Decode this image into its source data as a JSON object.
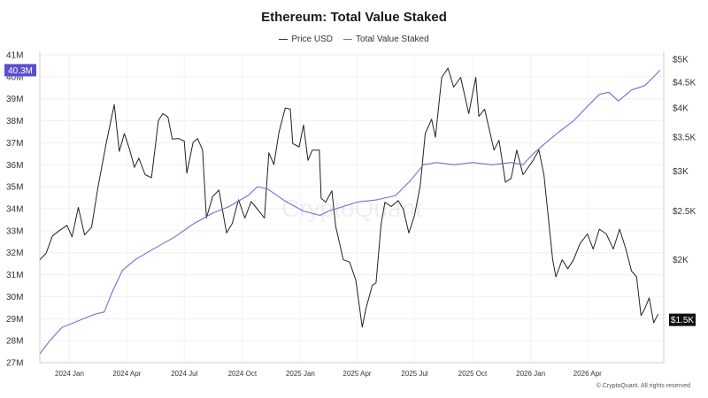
{
  "chart_data": {
    "type": "line",
    "title": "Ethereum: Total Value Staked",
    "watermark": "CryptoQuant",
    "footer": "© CryptoQuant. All rights reserved",
    "legend_placement": "top-center",
    "grid": true,
    "x_ticks": [
      "2024 Jan",
      "2024 Apr",
      "2024 Jul",
      "2024 Oct",
      "2025 Jan",
      "2025 Apr",
      "2025 Jul",
      "2025 Oct",
      "2026 Jan",
      "2026 Apr"
    ],
    "x_range": [
      "2023-11-15",
      "2026-07-31"
    ],
    "left_axis": {
      "range": [
        27,
        41
      ],
      "ticks": [
        "27M",
        "28M",
        "29M",
        "30M",
        "31M",
        "32M",
        "33M",
        "34M",
        "35M",
        "36M",
        "37M",
        "38M",
        "39M",
        "40M",
        "41M"
      ],
      "current_label": "40.3M",
      "current_value": 40.3
    },
    "right_axis": {
      "scale": "log",
      "range": [
        1250,
        5100
      ],
      "ticks": [
        {
          "label": "$5K",
          "value": 5000
        },
        {
          "label": "$4.5K",
          "value": 4500
        },
        {
          "label": "$4K",
          "value": 4000
        },
        {
          "label": "$3.5K",
          "value": 3500
        },
        {
          "label": "$3K",
          "value": 3000
        },
        {
          "label": "$2.5K",
          "value": 2500
        },
        {
          "label": "$2K",
          "value": 2000
        },
        {
          "label": "$1.5K",
          "value": 1500
        }
      ],
      "current_label": "$1.5K",
      "current_value": 1520
    },
    "series": [
      {
        "name": "Price USD",
        "axis": "right",
        "color": "#222222",
        "points": [
          [
            "2023-11-15",
            2000
          ],
          [
            "2023-11-25",
            2060
          ],
          [
            "2023-12-05",
            2230
          ],
          [
            "2023-12-15",
            2280
          ],
          [
            "2023-12-28",
            2340
          ],
          [
            "2024-01-05",
            2220
          ],
          [
            "2024-01-15",
            2540
          ],
          [
            "2024-01-25",
            2240
          ],
          [
            "2024-02-05",
            2320
          ],
          [
            "2024-02-15",
            2780
          ],
          [
            "2024-02-28",
            3390
          ],
          [
            "2024-03-08",
            3850
          ],
          [
            "2024-03-12",
            4060
          ],
          [
            "2024-03-20",
            3280
          ],
          [
            "2024-03-28",
            3560
          ],
          [
            "2024-04-05",
            3320
          ],
          [
            "2024-04-13",
            3050
          ],
          [
            "2024-04-20",
            3180
          ],
          [
            "2024-04-30",
            2950
          ],
          [
            "2024-05-10",
            2910
          ],
          [
            "2024-05-21",
            3780
          ],
          [
            "2024-05-28",
            3900
          ],
          [
            "2024-06-05",
            3840
          ],
          [
            "2024-06-12",
            3470
          ],
          [
            "2024-06-22",
            3480
          ],
          [
            "2024-07-01",
            3440
          ],
          [
            "2024-07-05",
            2970
          ],
          [
            "2024-07-15",
            3420
          ],
          [
            "2024-07-22",
            3480
          ],
          [
            "2024-07-30",
            3300
          ],
          [
            "2024-08-05",
            2420
          ],
          [
            "2024-08-15",
            2670
          ],
          [
            "2024-08-25",
            2750
          ],
          [
            "2024-09-06",
            2260
          ],
          [
            "2024-09-15",
            2360
          ],
          [
            "2024-09-25",
            2630
          ],
          [
            "2024-10-05",
            2420
          ],
          [
            "2024-10-15",
            2610
          ],
          [
            "2024-10-25",
            2520
          ],
          [
            "2024-11-05",
            2420
          ],
          [
            "2024-11-12",
            3260
          ],
          [
            "2024-11-20",
            3090
          ],
          [
            "2024-11-28",
            3580
          ],
          [
            "2024-12-08",
            4000
          ],
          [
            "2024-12-16",
            3980
          ],
          [
            "2024-12-20",
            3400
          ],
          [
            "2024-12-30",
            3350
          ],
          [
            "2025-01-06",
            3700
          ],
          [
            "2025-01-13",
            3150
          ],
          [
            "2025-01-20",
            3300
          ],
          [
            "2025-01-31",
            3300
          ],
          [
            "2025-02-03",
            2650
          ],
          [
            "2025-02-10",
            2600
          ],
          [
            "2025-02-20",
            2740
          ],
          [
            "2025-02-26",
            2330
          ],
          [
            "2025-03-10",
            2000
          ],
          [
            "2025-03-20",
            1980
          ],
          [
            "2025-03-30",
            1820
          ],
          [
            "2025-04-09",
            1470
          ],
          [
            "2025-04-15",
            1600
          ],
          [
            "2025-04-25",
            1780
          ],
          [
            "2025-05-01",
            1800
          ],
          [
            "2025-05-09",
            2350
          ],
          [
            "2025-05-15",
            2600
          ],
          [
            "2025-05-25",
            2550
          ],
          [
            "2025-06-05",
            2620
          ],
          [
            "2025-06-13",
            2520
          ],
          [
            "2025-06-22",
            2260
          ],
          [
            "2025-07-01",
            2450
          ],
          [
            "2025-07-10",
            2800
          ],
          [
            "2025-07-18",
            3560
          ],
          [
            "2025-07-28",
            3800
          ],
          [
            "2025-08-03",
            3500
          ],
          [
            "2025-08-13",
            4600
          ],
          [
            "2025-08-23",
            4800
          ],
          [
            "2025-09-01",
            4400
          ],
          [
            "2025-09-12",
            4600
          ],
          [
            "2025-09-25",
            3900
          ],
          [
            "2025-10-06",
            4600
          ],
          [
            "2025-10-11",
            3850
          ],
          [
            "2025-10-20",
            3980
          ],
          [
            "2025-11-04",
            3300
          ],
          [
            "2025-11-12",
            3450
          ],
          [
            "2025-11-22",
            2850
          ],
          [
            "2025-12-01",
            2900
          ],
          [
            "2025-12-10",
            3300
          ],
          [
            "2025-12-20",
            2950
          ],
          [
            "2026-01-05",
            3150
          ],
          [
            "2026-01-14",
            3300
          ],
          [
            "2026-01-22",
            2950
          ],
          [
            "2026-02-05",
            2000
          ],
          [
            "2026-02-10",
            1850
          ],
          [
            "2026-02-20",
            2000
          ],
          [
            "2026-03-01",
            1920
          ],
          [
            "2026-03-10",
            2000
          ],
          [
            "2026-03-20",
            2150
          ],
          [
            "2026-04-01",
            2250
          ],
          [
            "2026-04-10",
            2100
          ],
          [
            "2026-04-20",
            2300
          ],
          [
            "2026-05-01",
            2250
          ],
          [
            "2026-05-12",
            2100
          ],
          [
            "2026-05-22",
            2300
          ],
          [
            "2026-06-01",
            2100
          ],
          [
            "2026-06-10",
            1900
          ],
          [
            "2026-06-18",
            1850
          ],
          [
            "2026-06-25",
            1550
          ],
          [
            "2026-07-01",
            1600
          ],
          [
            "2026-07-08",
            1680
          ],
          [
            "2026-07-15",
            1500
          ],
          [
            "2026-07-22",
            1560
          ]
        ]
      },
      {
        "name": "Total Value Staked",
        "axis": "left",
        "color": "#6f6fd6",
        "points": [
          [
            "2023-11-15",
            27.4
          ],
          [
            "2023-12-01",
            28.0
          ],
          [
            "2023-12-20",
            28.6
          ],
          [
            "2024-01-15",
            28.9
          ],
          [
            "2024-02-10",
            29.2
          ],
          [
            "2024-02-25",
            29.3
          ],
          [
            "2024-03-10",
            30.3
          ],
          [
            "2024-03-25",
            31.2
          ],
          [
            "2024-04-15",
            31.7
          ],
          [
            "2024-05-15",
            32.2
          ],
          [
            "2024-06-15",
            32.7
          ],
          [
            "2024-07-15",
            33.3
          ],
          [
            "2024-08-15",
            33.8
          ],
          [
            "2024-09-10",
            34.1
          ],
          [
            "2024-10-10",
            34.6
          ],
          [
            "2024-10-25",
            35.0
          ],
          [
            "2024-11-10",
            34.9
          ],
          [
            "2024-12-05",
            34.4
          ],
          [
            "2025-01-05",
            33.9
          ],
          [
            "2025-02-01",
            33.7
          ],
          [
            "2025-02-15",
            33.9
          ],
          [
            "2025-03-10",
            34.1
          ],
          [
            "2025-04-01",
            34.3
          ],
          [
            "2025-05-01",
            34.4
          ],
          [
            "2025-06-01",
            34.6
          ],
          [
            "2025-06-25",
            35.3
          ],
          [
            "2025-07-15",
            36.0
          ],
          [
            "2025-08-05",
            36.1
          ],
          [
            "2025-09-01",
            36.0
          ],
          [
            "2025-10-01",
            36.1
          ],
          [
            "2025-11-01",
            36.0
          ],
          [
            "2025-12-01",
            36.1
          ],
          [
            "2025-12-20",
            36.0
          ],
          [
            "2026-01-05",
            36.5
          ],
          [
            "2026-01-25",
            37.0
          ],
          [
            "2026-02-15",
            37.5
          ],
          [
            "2026-03-10",
            38.0
          ],
          [
            "2026-03-30",
            38.6
          ],
          [
            "2026-04-20",
            39.2
          ],
          [
            "2026-05-05",
            39.3
          ],
          [
            "2026-05-20",
            38.9
          ],
          [
            "2026-06-10",
            39.4
          ],
          [
            "2026-07-01",
            39.6
          ],
          [
            "2026-07-15",
            40.0
          ],
          [
            "2026-07-25",
            40.3
          ]
        ]
      }
    ]
  }
}
